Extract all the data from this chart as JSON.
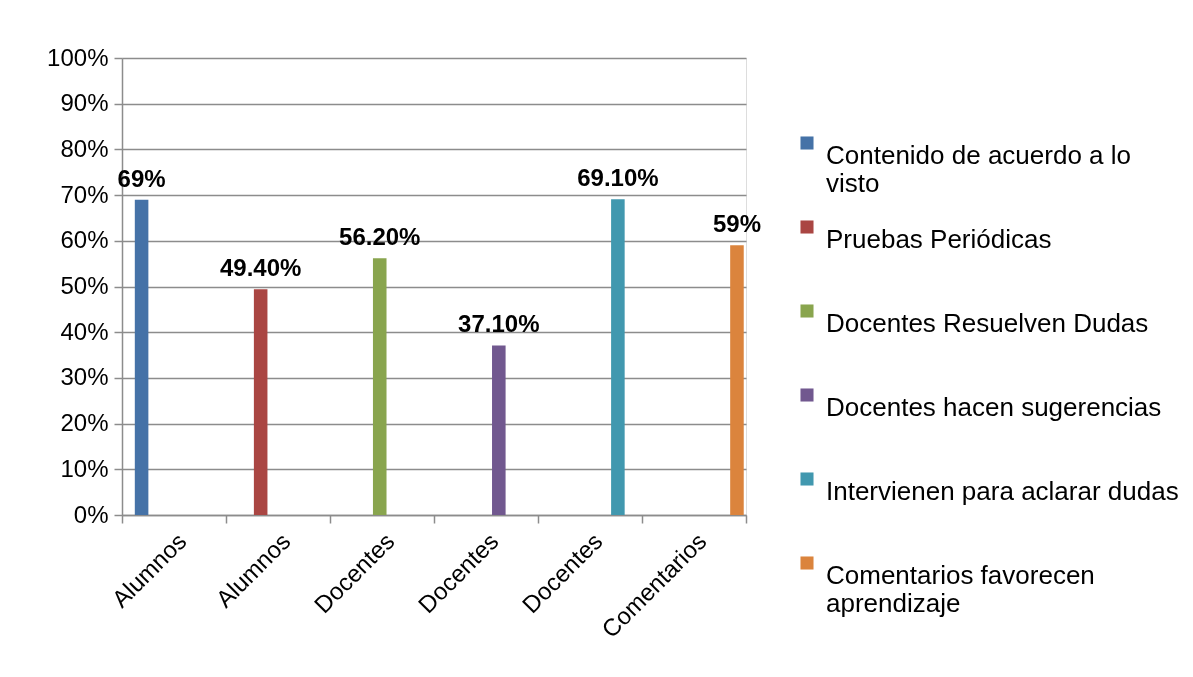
{
  "chart_data": {
    "type": "bar",
    "categories": [
      "Alumnos",
      "Alumnos",
      "Docentes",
      "Docentes",
      "Docentes",
      "Comentarios"
    ],
    "series": [
      {
        "name": "Contenido de acuerdo a lo visto",
        "color": "#4572a7",
        "values": [
          69,
          null,
          null,
          null,
          null,
          null
        ],
        "value_labels": [
          "69%",
          null,
          null,
          null,
          null,
          null
        ]
      },
      {
        "name": "Pruebas Periódicas",
        "color": "#aa4643",
        "values": [
          null,
          49.4,
          null,
          null,
          null,
          null
        ],
        "value_labels": [
          null,
          "49.40%",
          null,
          null,
          null,
          null
        ]
      },
      {
        "name": "Docentes Resuelven Dudas",
        "color": "#89a54e",
        "values": [
          null,
          null,
          56.2,
          null,
          null,
          null
        ],
        "value_labels": [
          null,
          null,
          "56.20%",
          null,
          null,
          null
        ]
      },
      {
        "name": "Docentes hacen sugerencias",
        "color": "#71588f",
        "values": [
          null,
          null,
          null,
          37.1,
          null,
          null
        ],
        "value_labels": [
          null,
          null,
          null,
          "37.10%",
          null,
          null
        ]
      },
      {
        "name": "Intervienen para aclarar dudas",
        "color": "#4198af",
        "values": [
          null,
          null,
          null,
          null,
          69.1,
          null
        ],
        "value_labels": [
          null,
          null,
          null,
          null,
          "69.10%",
          null
        ]
      },
      {
        "name": "Comentarios favorecen aprendizaje",
        "color": "#db843d",
        "values": [
          null,
          null,
          null,
          null,
          null,
          59
        ],
        "value_labels": [
          null,
          null,
          null,
          null,
          null,
          "59%"
        ]
      }
    ],
    "ylim": [
      0,
      100
    ],
    "yticks": [
      {
        "value": 0,
        "label": "0%"
      },
      {
        "value": 10,
        "label": "10%"
      },
      {
        "value": 20,
        "label": "20%"
      },
      {
        "value": 30,
        "label": "30%"
      },
      {
        "value": 40,
        "label": "40%"
      },
      {
        "value": 50,
        "label": "50%"
      },
      {
        "value": 60,
        "label": "60%"
      },
      {
        "value": 70,
        "label": "70%"
      },
      {
        "value": 80,
        "label": "80%"
      },
      {
        "value": 90,
        "label": "90%"
      },
      {
        "value": 100,
        "label": "100%"
      }
    ],
    "grid": "y",
    "legend": "right"
  }
}
